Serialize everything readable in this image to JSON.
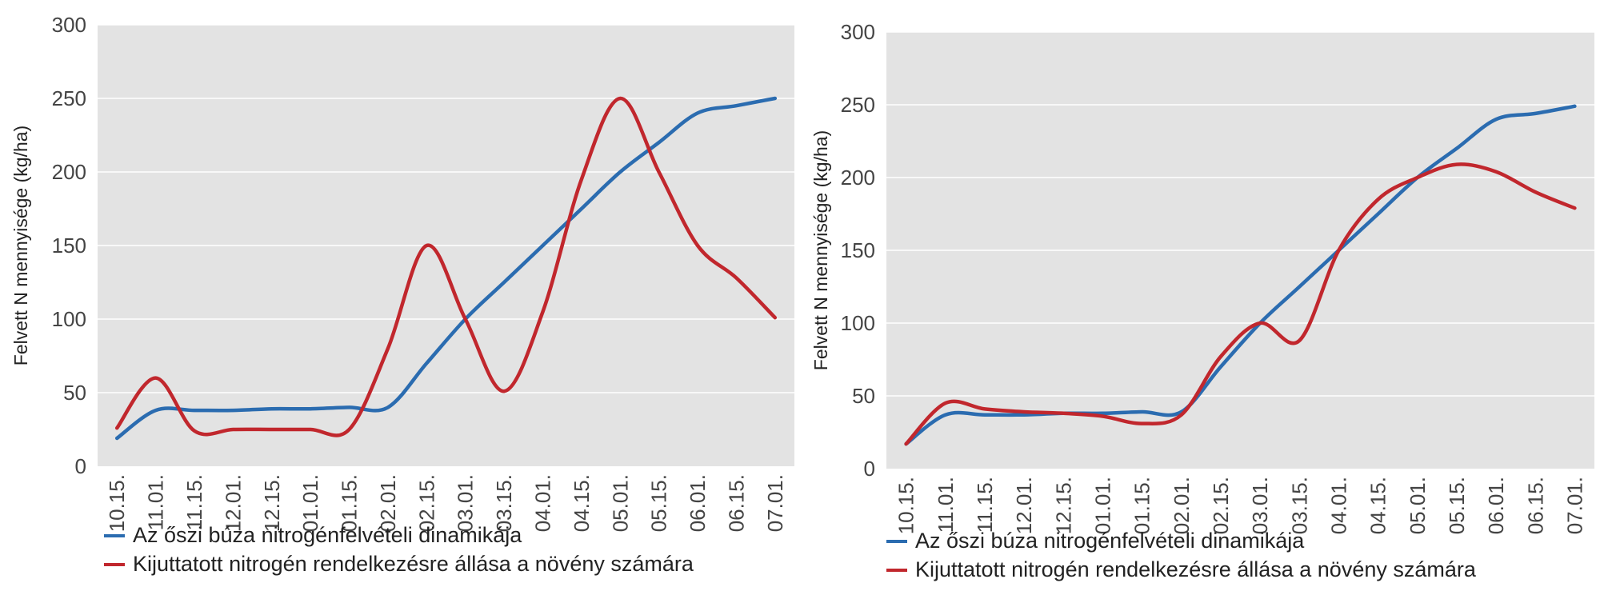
{
  "chart_data": [
    {
      "type": "line",
      "ylabel": "Felvett N mennyisége (kg/ha)",
      "xlabel": "",
      "categories": [
        "10.15.",
        "11.01.",
        "11.15.",
        "12.01.",
        "12.15.",
        "01.01.",
        "01.15.",
        "02.01.",
        "02.15.",
        "03.01.",
        "03.15.",
        "04.01.",
        "04.15.",
        "05.01.",
        "05.15.",
        "06.01.",
        "06.15.",
        "07.01."
      ],
      "ylim": [
        0,
        300
      ],
      "yticks": [
        0,
        50,
        100,
        150,
        200,
        250,
        300
      ],
      "grid": true,
      "legend_position": "bottom",
      "series": [
        {
          "name": "Az őszi búza nitrogénfelvételi dinamikája",
          "color": "#2b6cb0",
          "values": [
            19,
            38,
            38,
            38,
            39,
            39,
            40,
            40,
            70,
            100,
            125,
            150,
            175,
            200,
            220,
            240,
            245,
            250
          ]
        },
        {
          "name": "Kijuttatott nitrogén rendelkezésre állása a növény számára",
          "color": "#c1272d",
          "values": [
            26,
            60,
            24,
            25,
            25,
            25,
            25,
            80,
            150,
            100,
            51,
            105,
            195,
            250,
            200,
            150,
            128,
            101
          ]
        }
      ]
    },
    {
      "type": "line",
      "ylabel": "Felvett N mennyisége (kg/ha)",
      "xlabel": "",
      "categories": [
        "10.15.",
        "11.01.",
        "11.15.",
        "12.01.",
        "12.15.",
        "01.01.",
        "01.15.",
        "02.01.",
        "02.15.",
        "03.01.",
        "03.15.",
        "04.01.",
        "04.15.",
        "05.01.",
        "05.15.",
        "06.01.",
        "06.15.",
        "07.01."
      ],
      "ylim": [
        0,
        300
      ],
      "yticks": [
        0,
        50,
        100,
        150,
        200,
        250,
        300
      ],
      "grid": true,
      "legend_position": "bottom",
      "series": [
        {
          "name": "Az őszi búza nitrogénfelvételi dinamikája",
          "color": "#2b6cb0",
          "values": [
            17,
            37,
            37,
            37,
            38,
            38,
            39,
            39,
            70,
            100,
            125,
            150,
            175,
            200,
            220,
            240,
            244,
            249
          ]
        },
        {
          "name": "Kijuttatott nitrogén rendelkezésre állása a növény számára",
          "color": "#c1272d",
          "values": [
            17,
            45,
            41,
            39,
            38,
            36,
            31,
            37,
            77,
            100,
            88,
            150,
            185,
            200,
            209,
            204,
            190,
            179
          ]
        }
      ]
    }
  ]
}
